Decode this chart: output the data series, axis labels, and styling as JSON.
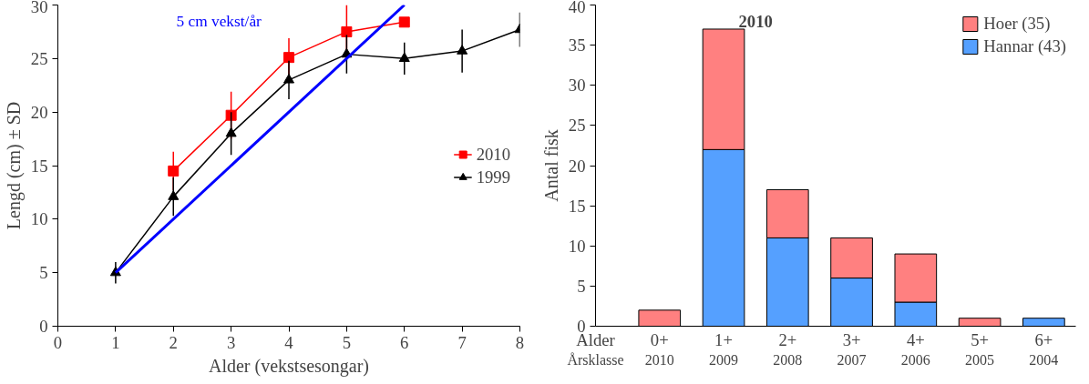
{
  "chart_data": [
    {
      "type": "line",
      "xlabel": "Alder (vekstsesongar)",
      "ylabel": "Lengd (cm) ± SD",
      "xlim": [
        0,
        8
      ],
      "ylim": [
        0,
        30
      ],
      "xticks": [
        0,
        1,
        2,
        3,
        4,
        5,
        6,
        7,
        8
      ],
      "yticks": [
        0,
        5,
        10,
        15,
        20,
        25,
        30
      ],
      "legend": "right",
      "grid": false,
      "annotations": [
        "5 cm vekst/år"
      ],
      "series": [
        {
          "name": "2010",
          "color": "#ff0000",
          "marker": "square",
          "x": [
            2,
            3,
            4,
            5,
            6
          ],
          "values": [
            14.5,
            19.7,
            25.1,
            27.5,
            28.4
          ],
          "errors": [
            1.8,
            2.2,
            1.8,
            2.5,
            null
          ]
        },
        {
          "name": "1999",
          "color": "#000000",
          "marker": "triangle",
          "x": [
            1,
            2,
            3,
            4,
            5,
            6,
            7,
            8
          ],
          "values": [
            5,
            12.1,
            18,
            23,
            25.4,
            25,
            25.7,
            27.7
          ],
          "errors": [
            1,
            1.8,
            2,
            1.8,
            1.8,
            1.5,
            2,
            1.6
          ]
        },
        {
          "type": "line",
          "color": "#0000ff",
          "marker": "none",
          "x": [
            1,
            6
          ],
          "values": [
            5,
            30
          ]
        }
      ]
    },
    {
      "type": "bar",
      "stacked": true,
      "title": "2010",
      "ylabel": "Antal fisk",
      "ylim": [
        0,
        40
      ],
      "yticks": [
        0,
        5,
        10,
        15,
        20,
        25,
        30,
        35,
        40
      ],
      "legend": "top right",
      "grid": false,
      "categories": [
        "0+\n2010",
        "1+\n2009",
        "2+\n2008",
        "3+\n2007",
        "4+\n2006",
        "5+\n2005",
        "6+\n2004"
      ],
      "annotations": [
        "Alder",
        "Årsklasse"
      ],
      "series": [
        {
          "name": "Hannar (43)",
          "color": "#55a0ff",
          "values": [
            0,
            22,
            11,
            6,
            3,
            0,
            1
          ]
        },
        {
          "name": "Hoer (35)",
          "color": "#ff8080",
          "values": [
            2,
            15,
            6,
            5,
            6,
            1,
            0
          ]
        }
      ]
    }
  ]
}
